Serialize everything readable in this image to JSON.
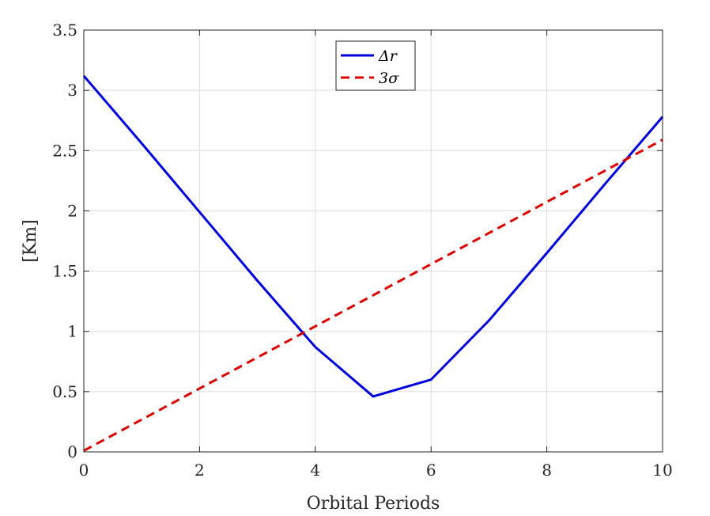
{
  "chart_data": {
    "type": "line",
    "xlabel": "Orbital Periods",
    "ylabel": "[Km]",
    "xlim": [
      0,
      10
    ],
    "ylim": [
      0,
      3.5
    ],
    "x_ticks": [
      0,
      2,
      4,
      6,
      8,
      10
    ],
    "y_ticks": [
      0,
      0.5,
      1,
      1.5,
      2,
      2.5,
      3,
      3.5
    ],
    "x_tick_labels": [
      "0",
      "2",
      "4",
      "6",
      "8",
      "10"
    ],
    "y_tick_labels": [
      "0",
      "0.5",
      "1",
      "1.5",
      "2",
      "2.5",
      "3",
      "3.5"
    ],
    "grid": true,
    "legend_position": "top-center",
    "series": [
      {
        "name": "Δr",
        "color": "#0000dd",
        "style": "solid",
        "x": [
          0,
          1,
          2,
          3,
          4,
          5,
          6,
          7,
          8,
          9,
          10
        ],
        "y": [
          3.12,
          2.56,
          1.99,
          1.42,
          0.87,
          0.46,
          0.6,
          1.09,
          1.65,
          2.22,
          2.78
        ]
      },
      {
        "name": "3σ",
        "color": "#dd0000",
        "style": "dashed",
        "x": [
          0,
          10
        ],
        "y": [
          0.01,
          2.59
        ]
      }
    ]
  }
}
